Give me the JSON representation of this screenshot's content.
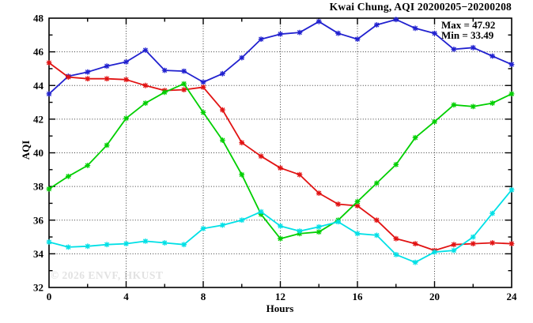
{
  "chart_data": {
    "type": "line",
    "title": "Kwai Chung, AQI 20200205−20200208",
    "xlabel": "Hours",
    "ylabel": "AQI",
    "xlim": [
      0,
      24
    ],
    "ylim": [
      32,
      48
    ],
    "x_ticks": [
      0,
      4,
      8,
      12,
      16,
      20,
      24
    ],
    "x_minor_step": 2,
    "y_ticks": [
      32,
      34,
      36,
      38,
      40,
      42,
      44,
      46,
      48
    ],
    "y_minor_step": 1,
    "grid": "dotted lines at major ticks, full plot border, mirrored ticks",
    "legend": "none",
    "x": [
      0,
      1,
      2,
      3,
      4,
      5,
      6,
      7,
      8,
      9,
      10,
      11,
      12,
      13,
      14,
      15,
      16,
      17,
      18,
      19,
      20,
      21,
      22,
      23,
      24
    ],
    "series": [
      {
        "name": "blue-line",
        "color": "#2121cf",
        "values": [
          43.5,
          44.55,
          44.8,
          45.15,
          45.4,
          46.1,
          44.9,
          44.85,
          44.2,
          44.7,
          45.65,
          46.75,
          47.05,
          47.15,
          47.8,
          47.1,
          46.75,
          47.6,
          47.92,
          47.4,
          47.1,
          46.15,
          46.25,
          45.75,
          45.25
        ]
      },
      {
        "name": "red-line",
        "color": "#e11212",
        "values": [
          45.35,
          44.5,
          44.4,
          44.4,
          44.35,
          44.0,
          43.7,
          43.75,
          43.9,
          42.55,
          40.6,
          39.8,
          39.1,
          38.7,
          37.6,
          36.95,
          36.85,
          36.0,
          34.9,
          34.6,
          34.2,
          34.55,
          34.6,
          34.65,
          34.6
        ]
      },
      {
        "name": "green-line",
        "color": "#00cf00",
        "values": [
          37.85,
          38.6,
          39.25,
          40.45,
          42.05,
          42.95,
          43.6,
          44.1,
          42.4,
          40.75,
          38.7,
          36.35,
          34.9,
          35.2,
          35.3,
          36.0,
          37.1,
          38.2,
          39.3,
          40.9,
          41.85,
          42.85,
          42.75,
          42.95,
          43.5
        ]
      },
      {
        "name": "cyan-line",
        "color": "#00e0e6",
        "values": [
          34.7,
          34.4,
          34.45,
          34.55,
          34.6,
          34.75,
          34.65,
          34.55,
          35.5,
          35.7,
          36.0,
          36.5,
          35.65,
          35.35,
          35.6,
          35.9,
          35.2,
          35.1,
          33.95,
          33.49,
          34.1,
          34.2,
          35.0,
          36.4,
          37.8
        ]
      }
    ],
    "annotations": {
      "max_label": "Max = 47.92",
      "min_label": "Min = 33.49",
      "max": 47.92,
      "min": 33.49
    },
    "watermark": "© 2026 ENVF, HKUST",
    "colors": {
      "grid": "#3a3a3a",
      "axis": "#000000",
      "watermark": "#e2e2e2"
    }
  }
}
